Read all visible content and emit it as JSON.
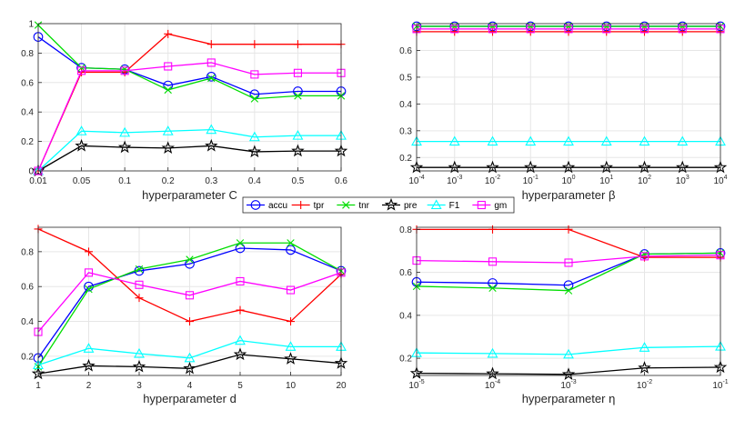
{
  "legend": [
    {
      "name": "accu",
      "color": "#0000ff",
      "marker": "circle"
    },
    {
      "name": "tpr",
      "color": "#ff0000",
      "marker": "plus"
    },
    {
      "name": "tnr",
      "color": "#00dd00",
      "marker": "cross"
    },
    {
      "name": "pre",
      "color": "#000000",
      "marker": "star"
    },
    {
      "name": "F1",
      "color": "#00ffff",
      "marker": "triangle"
    },
    {
      "name": "gm",
      "color": "#ff00ff",
      "marker": "square"
    }
  ],
  "chart_data": [
    {
      "type": "line",
      "xlabel": "hyperparameter C",
      "categories": [
        "0.01",
        "0.05",
        "0.1",
        "0.2",
        "0.3",
        "0.4",
        "0.5",
        "0.6"
      ],
      "yticks": [
        "0",
        "0.2",
        "0.4",
        "0.6",
        "0.8",
        "1"
      ],
      "ylim": [
        0,
        1
      ],
      "series": [
        {
          "name": "accu",
          "values": [
            0.91,
            0.7,
            0.69,
            0.58,
            0.64,
            0.52,
            0.54,
            0.54
          ]
        },
        {
          "name": "tpr",
          "values": [
            0.0,
            0.67,
            0.67,
            0.93,
            0.86,
            0.86,
            0.86,
            0.86
          ]
        },
        {
          "name": "tnr",
          "values": [
            0.99,
            0.7,
            0.69,
            0.55,
            0.63,
            0.49,
            0.51,
            0.51
          ]
        },
        {
          "name": "pre",
          "values": [
            0.0,
            0.17,
            0.16,
            0.155,
            0.17,
            0.13,
            0.135,
            0.135
          ]
        },
        {
          "name": "F1",
          "values": [
            0.0,
            0.27,
            0.26,
            0.27,
            0.28,
            0.23,
            0.24,
            0.24
          ]
        },
        {
          "name": "gm",
          "values": [
            0.0,
            0.68,
            0.68,
            0.71,
            0.735,
            0.655,
            0.665,
            0.665
          ]
        }
      ]
    },
    {
      "type": "line",
      "xlabel": "hyperparameter β",
      "categories": [
        "10^-4",
        "10^-3",
        "10^-2",
        "10^-1",
        "10^0",
        "10^1",
        "10^2",
        "10^3",
        "10^4"
      ],
      "yticks": [
        "0.2",
        "0.3",
        "0.4",
        "0.5",
        "0.6"
      ],
      "ylim": [
        0.15,
        0.7
      ],
      "series": [
        {
          "name": "accu",
          "values": [
            0.69,
            0.69,
            0.69,
            0.69,
            0.69,
            0.69,
            0.69,
            0.69,
            0.69
          ]
        },
        {
          "name": "tpr",
          "values": [
            0.67,
            0.67,
            0.67,
            0.67,
            0.67,
            0.67,
            0.67,
            0.67,
            0.67
          ]
        },
        {
          "name": "tnr",
          "values": [
            0.69,
            0.69,
            0.69,
            0.69,
            0.69,
            0.69,
            0.69,
            0.69,
            0.69
          ]
        },
        {
          "name": "pre",
          "values": [
            0.163,
            0.163,
            0.163,
            0.163,
            0.163,
            0.163,
            0.163,
            0.163,
            0.163
          ]
        },
        {
          "name": "F1",
          "values": [
            0.26,
            0.26,
            0.26,
            0.26,
            0.26,
            0.26,
            0.26,
            0.26,
            0.26
          ]
        },
        {
          "name": "gm",
          "values": [
            0.68,
            0.68,
            0.68,
            0.68,
            0.68,
            0.68,
            0.68,
            0.68,
            0.68
          ]
        }
      ]
    },
    {
      "type": "line",
      "xlabel": "hyperparameter d",
      "categories": [
        "1",
        "2",
        "3",
        "4",
        "5",
        "10",
        "20"
      ],
      "yticks": [
        "0.2",
        "0.4",
        "0.6",
        "0.8"
      ],
      "ylim": [
        0.09,
        0.94
      ],
      "series": [
        {
          "name": "accu",
          "values": [
            0.19,
            0.6,
            0.69,
            0.73,
            0.82,
            0.81,
            0.69
          ]
        },
        {
          "name": "tpr",
          "values": [
            0.93,
            0.8,
            0.535,
            0.4,
            0.465,
            0.4,
            0.67
          ]
        },
        {
          "name": "tnr",
          "values": [
            0.14,
            0.585,
            0.7,
            0.755,
            0.85,
            0.85,
            0.69
          ]
        },
        {
          "name": "pre",
          "values": [
            0.1,
            0.145,
            0.14,
            0.13,
            0.21,
            0.185,
            0.16
          ]
        },
        {
          "name": "F1",
          "values": [
            0.15,
            0.245,
            0.215,
            0.19,
            0.29,
            0.255,
            0.255
          ]
        },
        {
          "name": "gm",
          "values": [
            0.34,
            0.68,
            0.61,
            0.55,
            0.63,
            0.58,
            0.68
          ]
        }
      ]
    },
    {
      "type": "line",
      "xlabel": "hyperparameter η",
      "categories": [
        "10^-5",
        "10^-4",
        "10^-3",
        "10^-2",
        "10^-1"
      ],
      "yticks": [
        "0.2",
        "0.4",
        "0.6",
        "0.8"
      ],
      "ylim": [
        0.12,
        0.81
      ],
      "series": [
        {
          "name": "accu",
          "values": [
            0.555,
            0.55,
            0.54,
            0.685,
            0.69
          ]
        },
        {
          "name": "tpr",
          "values": [
            0.8,
            0.8,
            0.8,
            0.67,
            0.67
          ]
        },
        {
          "name": "tnr",
          "values": [
            0.535,
            0.527,
            0.515,
            0.685,
            0.69
          ]
        },
        {
          "name": "pre",
          "values": [
            0.13,
            0.128,
            0.125,
            0.155,
            0.158
          ]
        },
        {
          "name": "F1",
          "values": [
            0.225,
            0.222,
            0.218,
            0.25,
            0.255
          ]
        },
        {
          "name": "gm",
          "values": [
            0.655,
            0.65,
            0.645,
            0.675,
            0.68
          ]
        }
      ]
    }
  ]
}
